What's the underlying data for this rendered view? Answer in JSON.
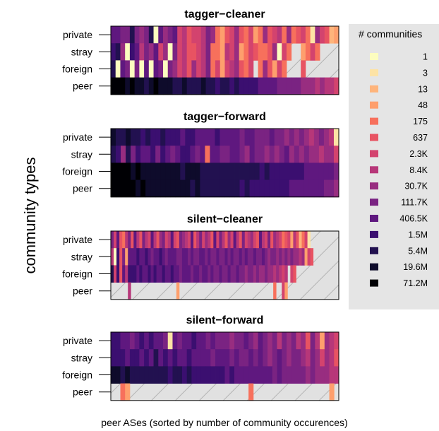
{
  "chart_data": {
    "type": "heatmap",
    "ylabel": "community types",
    "xlabel": "peer ASes (sorted by number of community occurences)",
    "row_labels": [
      "private",
      "stray",
      "foreign",
      "peer"
    ],
    "legend": {
      "title": "# communities",
      "labels": [
        "1",
        "3",
        "13",
        "48",
        "175",
        "637",
        "2.3K",
        "8.4K",
        "30.7K",
        "111.7K",
        "406.5K",
        "1.5M",
        "5.4M",
        "19.6M",
        "71.2M"
      ],
      "colors": [
        "#fcfdbf",
        "#fde3a5",
        "#feb47b",
        "#fe9f6d",
        "#f7705c",
        "#e85362",
        "#d3436e",
        "#b73779",
        "#982d80",
        "#7a2382",
        "#5f187f",
        "#3b0f70",
        "#221150",
        "#0e0b2b",
        "#000004"
      ]
    },
    "missing_fill": "#e1e1e1",
    "panels": [
      {
        "title": "tagger−cleaner",
        "columns": 48,
        "rows": [
          [
            10,
            10,
            9,
            9,
            12,
            9,
            8,
            9,
            12,
            0,
            10,
            8,
            9,
            10,
            6,
            7,
            5,
            6,
            6,
            7,
            9,
            8,
            4,
            3,
            5,
            6,
            8,
            5,
            4,
            6,
            3,
            4,
            8,
            5,
            6,
            7,
            4,
            8,
            4,
            5,
            6,
            4,
            1,
            8,
            6,
            5,
            2,
            3
          ],
          [
            11,
            12,
            8,
            0,
            11,
            10,
            7,
            9,
            8,
            10,
            6,
            8,
            0,
            9,
            6,
            7,
            5,
            5,
            6,
            7,
            9,
            4,
            4,
            3,
            7,
            6,
            8,
            3,
            4,
            6,
            5,
            4,
            4,
            5,
            8,
            0,
            6,
            4,
            -1,
            -1,
            3,
            4,
            6,
            4,
            -1,
            -1,
            -1,
            -1
          ],
          [
            12,
            0,
            10,
            9,
            0,
            9,
            0,
            10,
            0,
            10,
            9,
            0,
            9,
            8,
            6,
            7,
            5,
            8,
            6,
            7,
            9,
            4,
            6,
            3,
            6,
            7,
            8,
            5,
            4,
            6,
            -1,
            4,
            8,
            5,
            3,
            6,
            4,
            -1,
            -1,
            -1,
            5,
            -1,
            -1,
            -1,
            -1,
            -1,
            -1,
            -1
          ],
          [
            14,
            14,
            14,
            13,
            14,
            13,
            13,
            12,
            13,
            14,
            13,
            13,
            13,
            12,
            12,
            13,
            12,
            12,
            12,
            13,
            12,
            12,
            11,
            12,
            12,
            11,
            12,
            11,
            11,
            11,
            11,
            10,
            10,
            10,
            10,
            9,
            9,
            9,
            9,
            9,
            8,
            8,
            8,
            7,
            8,
            7,
            7,
            6
          ]
        ]
      },
      {
        "title": "tagger−forward",
        "columns": 46,
        "rows": [
          [
            13,
            12,
            12,
            13,
            12,
            12,
            11,
            12,
            11,
            11,
            12,
            11,
            11,
            11,
            10,
            11,
            11,
            10,
            10,
            10,
            10,
            11,
            10,
            10,
            10,
            10,
            9,
            10,
            10,
            9,
            9,
            9,
            10,
            9,
            9,
            8,
            9,
            8,
            9,
            8,
            7,
            8,
            9,
            8,
            7,
            1
          ],
          [
            12,
            11,
            8,
            12,
            9,
            11,
            10,
            10,
            11,
            9,
            11,
            10,
            9,
            10,
            11,
            11,
            10,
            9,
            10,
            4,
            10,
            10,
            9,
            9,
            10,
            10,
            9,
            8,
            10,
            9,
            9,
            8,
            9,
            8,
            9,
            10,
            8,
            9,
            8,
            9,
            8,
            8,
            7,
            8,
            8,
            6
          ],
          [
            14,
            14,
            14,
            14,
            13,
            14,
            13,
            13,
            13,
            13,
            13,
            13,
            13,
            13,
            12,
            13,
            13,
            13,
            12,
            12,
            12,
            12,
            12,
            12,
            12,
            12,
            12,
            12,
            12,
            12,
            11,
            12,
            11,
            11,
            11,
            11,
            11,
            11,
            11,
            10,
            10,
            10,
            10,
            10,
            10,
            9
          ],
          [
            14,
            14,
            14,
            14,
            14,
            13,
            14,
            13,
            13,
            13,
            13,
            13,
            13,
            13,
            13,
            13,
            12,
            13,
            12,
            12,
            12,
            12,
            12,
            12,
            12,
            12,
            11,
            12,
            11,
            11,
            11,
            11,
            11,
            11,
            11,
            11,
            10,
            10,
            10,
            10,
            10,
            10,
            10,
            9,
            9,
            8
          ]
        ]
      },
      {
        "title": "silent−cleaner",
        "columns": 80,
        "rows": [
          [
            9,
            6,
            10,
            5,
            4,
            7,
            9,
            5,
            10,
            7,
            5,
            9,
            7,
            6,
            10,
            7,
            5,
            8,
            9,
            6,
            7,
            10,
            6,
            5,
            9,
            8,
            7,
            6,
            10,
            5,
            7,
            9,
            6,
            8,
            7,
            5,
            10,
            6,
            9,
            7,
            5,
            8,
            6,
            10,
            7,
            5,
            9,
            6,
            7,
            8,
            6,
            5,
            10,
            7,
            6,
            9,
            5,
            8,
            7,
            6,
            4,
            5,
            6,
            3,
            7,
            5,
            2,
            4,
            6,
            1,
            -1,
            -1,
            -1,
            -1,
            -1,
            -1,
            -1,
            -1,
            -1,
            -1
          ],
          [
            7,
            0,
            11,
            5,
            9,
            3,
            10,
            10,
            10,
            11,
            10,
            10,
            11,
            10,
            9,
            10,
            10,
            11,
            10,
            9,
            10,
            10,
            10,
            9,
            9,
            10,
            10,
            9,
            10,
            9,
            9,
            10,
            10,
            9,
            10,
            9,
            9,
            10,
            9,
            9,
            10,
            9,
            10,
            9,
            9,
            10,
            9,
            10,
            9,
            9,
            10,
            9,
            9,
            10,
            9,
            8,
            9,
            9,
            8,
            9,
            8,
            9,
            8,
            9,
            8,
            8,
            7,
            8,
            3,
            6,
            5,
            -1,
            -1,
            -1,
            -1,
            -1,
            -1,
            -1,
            -1,
            -1
          ],
          [
            12,
            6,
            11,
            5,
            10,
            7,
            11,
            11,
            11,
            10,
            11,
            10,
            10,
            11,
            10,
            11,
            10,
            10,
            11,
            10,
            10,
            11,
            10,
            10,
            9,
            10,
            10,
            10,
            9,
            10,
            10,
            9,
            10,
            10,
            9,
            10,
            9,
            9,
            10,
            9,
            9,
            10,
            9,
            9,
            10,
            9,
            9,
            8,
            9,
            9,
            8,
            9,
            8,
            8,
            9,
            8,
            8,
            7,
            8,
            7,
            6,
            7,
            -1,
            6,
            5,
            -1,
            -1,
            -1,
            -1,
            -1,
            -1,
            -1,
            -1,
            -1,
            -1,
            -1,
            -1,
            -1,
            -1,
            -1
          ],
          [
            -1,
            -1,
            -1,
            -1,
            -1,
            -1,
            7,
            -1,
            -1,
            -1,
            -1,
            -1,
            -1,
            -1,
            -1,
            -1,
            -1,
            -1,
            -1,
            -1,
            -1,
            -1,
            -1,
            3,
            -1,
            -1,
            -1,
            -1,
            -1,
            -1,
            -1,
            -1,
            -1,
            -1,
            -1,
            -1,
            -1,
            -1,
            -1,
            -1,
            -1,
            -1,
            -1,
            -1,
            -1,
            -1,
            -1,
            -1,
            -1,
            -1,
            -1,
            -1,
            -1,
            -1,
            -1,
            -1,
            -1,
            4,
            -1,
            -1,
            6,
            3,
            -1,
            -1,
            -1,
            -1,
            -1,
            -1,
            -1,
            -1,
            -1,
            -1,
            -1,
            -1,
            -1,
            -1,
            -1,
            -1,
            -1,
            -1
          ]
        ]
      },
      {
        "title": "silent−forward",
        "columns": 48,
        "rows": [
          [
            11,
            11,
            10,
            10,
            9,
            10,
            11,
            10,
            11,
            10,
            10,
            9,
            1,
            10,
            9,
            10,
            10,
            11,
            10,
            10,
            9,
            10,
            9,
            9,
            9,
            8,
            9,
            9,
            10,
            9,
            8,
            10,
            9,
            8,
            9,
            7,
            9,
            8,
            9,
            7,
            8,
            5,
            9,
            7,
            3,
            8,
            7,
            6
          ],
          [
            11,
            11,
            11,
            10,
            11,
            11,
            10,
            11,
            10,
            12,
            10,
            11,
            10,
            11,
            10,
            10,
            11,
            10,
            10,
            10,
            10,
            9,
            10,
            10,
            10,
            9,
            10,
            9,
            9,
            10,
            9,
            10,
            9,
            8,
            9,
            10,
            9,
            8,
            9,
            9,
            8,
            7,
            9,
            8,
            6,
            8,
            7,
            5
          ],
          [
            13,
            13,
            12,
            13,
            12,
            12,
            12,
            12,
            12,
            12,
            12,
            12,
            11,
            12,
            12,
            11,
            12,
            11,
            11,
            11,
            11,
            11,
            11,
            11,
            10,
            11,
            10,
            10,
            10,
            10,
            10,
            10,
            10,
            10,
            9,
            10,
            9,
            9,
            9,
            9,
            9,
            8,
            9,
            8,
            8,
            8,
            7,
            7
          ],
          [
            -1,
            -1,
            4,
            3,
            -1,
            -1,
            -1,
            -1,
            -1,
            -1,
            -1,
            -1,
            -1,
            -1,
            -1,
            -1,
            -1,
            -1,
            -1,
            -1,
            -1,
            -1,
            -1,
            -1,
            -1,
            -1,
            -1,
            -1,
            -1,
            4,
            -1,
            -1,
            -1,
            -1,
            -1,
            -1,
            -1,
            -1,
            -1,
            -1,
            -1,
            -1,
            -1,
            -1,
            -1,
            -1,
            3,
            -1
          ]
        ]
      }
    ]
  }
}
